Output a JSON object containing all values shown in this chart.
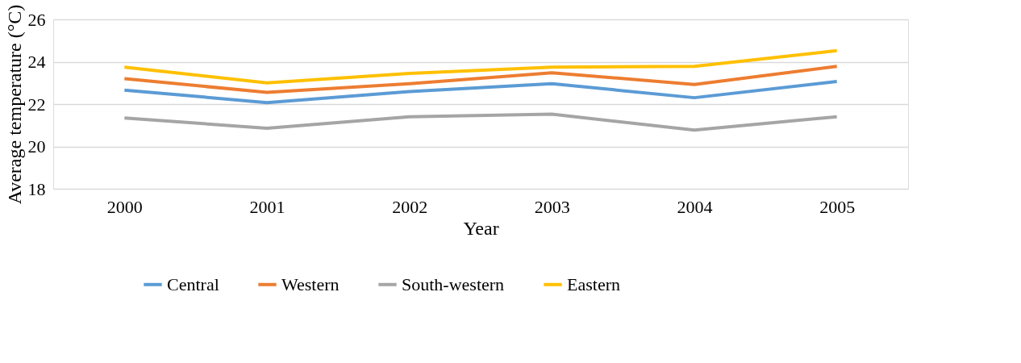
{
  "chart_data": {
    "type": "line",
    "xlabel": "Year",
    "ylabel": "Average temperature (°C)",
    "categories": [
      "2000",
      "2001",
      "2002",
      "2003",
      "2004",
      "2005"
    ],
    "series": [
      {
        "name": "Central",
        "color": "#5b9bd5",
        "values": [
          22.66,
          22.07,
          22.59,
          22.96,
          22.3,
          23.07
        ]
      },
      {
        "name": "Western",
        "color": "#ed7d31",
        "values": [
          23.2,
          22.55,
          22.96,
          23.48,
          22.92,
          23.78
        ]
      },
      {
        "name": "South-western",
        "color": "#a5a5a5",
        "values": [
          21.34,
          20.86,
          21.4,
          21.52,
          20.77,
          21.4
        ]
      },
      {
        "name": "Eastern",
        "color": "#ffc000",
        "values": [
          23.74,
          23.0,
          23.45,
          23.74,
          23.78,
          24.52
        ]
      }
    ],
    "ylim": [
      18,
      26
    ],
    "yticks": [
      18,
      20,
      22,
      24,
      26
    ],
    "grid": "y",
    "legend": "bottom",
    "marker": "none",
    "line_style": "solid"
  }
}
